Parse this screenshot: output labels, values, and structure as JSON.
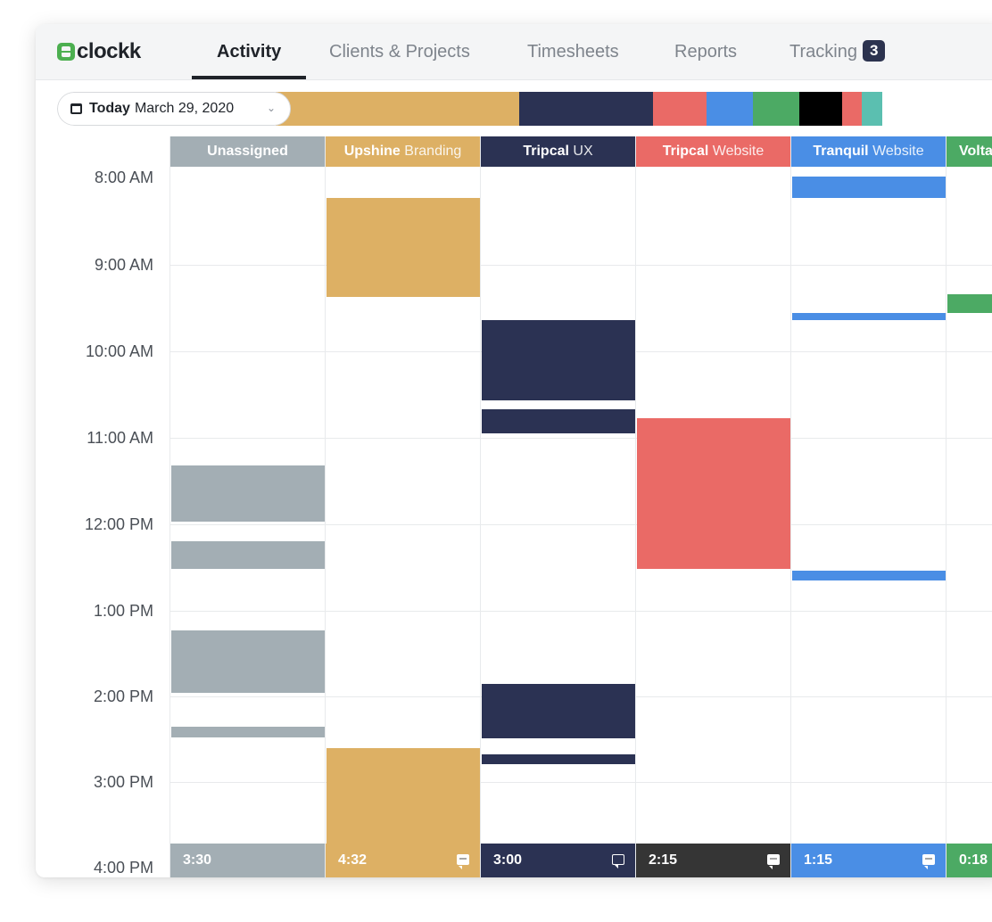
{
  "app": {
    "logo_text": "clockk"
  },
  "nav": {
    "tabs": [
      {
        "label": "Activity",
        "active": true
      },
      {
        "label": "Clients & Projects",
        "active": false
      },
      {
        "label": "Timesheets",
        "active": false
      },
      {
        "label": "Reports",
        "active": false
      },
      {
        "label": "Tracking",
        "active": false
      }
    ],
    "tracking_badge": "3"
  },
  "date": {
    "today_label": "Today",
    "date_text": "March 29, 2020"
  },
  "distribution_colors": [
    "#ddb064",
    "#2b3253",
    "#ea6a66",
    "#4a8ee5",
    "#4caa64",
    "#000000",
    "#ea6a66",
    "#5bbfb0"
  ],
  "hours": [
    "8:00 AM",
    "9:00 AM",
    "10:00 AM",
    "11:00 AM",
    "12:00 PM",
    "1:00 PM",
    "2:00 PM",
    "3:00 PM",
    "4:00 PM"
  ],
  "columns": [
    {
      "client": "Unassigned",
      "project": "",
      "color": "#a3aeb4",
      "total": "3:30",
      "comment": "none",
      "blocks": [
        [
          "11:21",
          "12:00"
        ],
        [
          "12:14",
          "12:33"
        ],
        [
          "13:16",
          "13:59"
        ],
        [
          "14:23",
          "14:30"
        ]
      ]
    },
    {
      "client": "Upshine",
      "project": "Branding",
      "color": "#ddb064",
      "total": "4:32",
      "comment": "filled",
      "blocks": [
        [
          "8:15",
          "9:24"
        ],
        [
          "14:38",
          "15:45"
        ]
      ]
    },
    {
      "client": "Tripcal",
      "project": "UX",
      "color": "#2b3253",
      "total": "3:00",
      "comment": "outline",
      "blocks": [
        [
          "9:40",
          "10:36"
        ],
        [
          "10:42",
          "10:59"
        ],
        [
          "13:53",
          "14:31"
        ],
        [
          "14:42",
          "14:49"
        ]
      ]
    },
    {
      "client": "Tripcal",
      "project": "Website",
      "color": "#ea6a66",
      "footer_color": "#353535",
      "total": "2:15",
      "comment": "filled",
      "blocks": [
        [
          "10:48",
          "12:33"
        ]
      ]
    },
    {
      "client": "Tranquil",
      "project": "Website",
      "color": "#4a8ee5",
      "total": "1:15",
      "comment": "filled",
      "blocks": [
        [
          "8:00",
          "8:15"
        ],
        [
          "9:35",
          "9:40"
        ],
        [
          "12:34",
          "12:41"
        ]
      ]
    },
    {
      "client": "Volta",
      "project": "",
      "color": "#4caa64",
      "total": "0:18",
      "comment": "none",
      "blocks": [
        [
          "9:22",
          "9:35"
        ]
      ]
    }
  ]
}
